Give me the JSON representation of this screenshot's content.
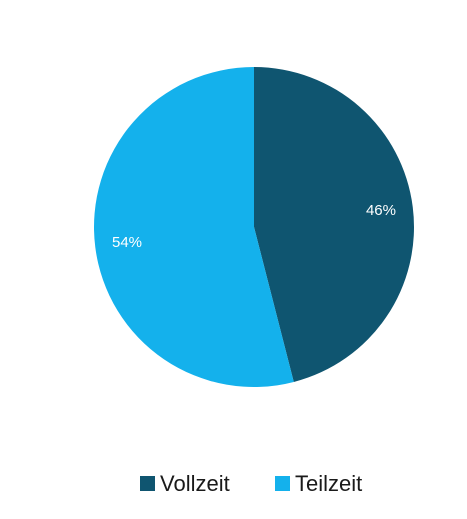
{
  "chart_data": {
    "type": "pie",
    "categories": [
      "Vollzeit",
      "Teilzeit"
    ],
    "values": [
      46,
      54
    ],
    "value_labels": [
      "46%",
      "54%"
    ],
    "colors": [
      "#0f5570",
      "#14b1ec"
    ],
    "legend": "bottom"
  }
}
